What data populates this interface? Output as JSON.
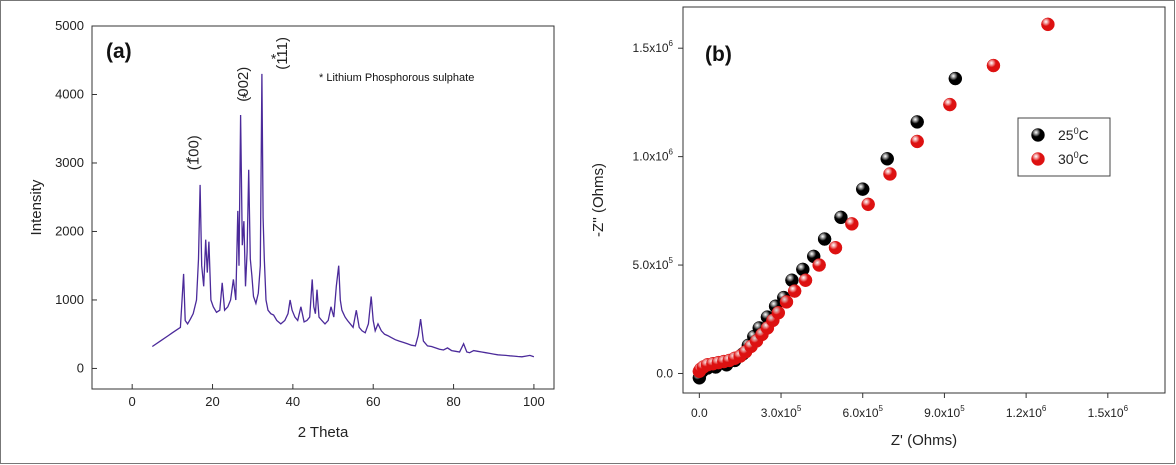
{
  "chart_data": [
    {
      "type": "line",
      "panel_label": "(a)",
      "xlabel": "2 Theta",
      "ylabel": "Intensity",
      "xlim": [
        -10,
        105
      ],
      "ylim": [
        -300,
        5000
      ],
      "x_ticks": [
        0,
        20,
        40,
        60,
        80,
        100
      ],
      "y_ticks": [
        0,
        1000,
        2000,
        3000,
        4000,
        5000
      ],
      "color": "#4b2a9a",
      "legend_note": "* Lithium Phosphorous sulphate",
      "annotations": [
        {
          "text": "(100)",
          "x": 16.5,
          "y": 3150,
          "star_x": 14,
          "star_y": 2950
        },
        {
          "text": "(002)",
          "x": 28.8,
          "y": 4150,
          "star_x": 28,
          "star_y": 3880
        },
        {
          "text": "(111)",
          "x": 38.5,
          "y": 4600,
          "star_x": 35.2,
          "star_y": 4450
        }
      ],
      "series": [
        {
          "x": [
            5,
            7,
            9,
            10,
            11,
            12,
            12.8,
            13.2,
            13.8,
            14.5,
            15.2,
            16,
            16.5,
            16.9,
            17.3,
            17.8,
            18.3,
            18.7,
            19.1,
            19.6,
            20.2,
            21,
            21.8,
            22.4,
            23,
            23.8,
            24.5,
            25.2,
            25.8,
            26.3,
            26.6,
            27,
            27.4,
            27.8,
            28.2,
            28.6,
            29,
            29.4,
            29.8,
            30.2,
            30.8,
            31.4,
            31.9,
            32.3,
            32.6,
            32.9,
            33.3,
            33.8,
            34.5,
            35.2,
            36,
            37,
            38,
            38.8,
            39.3,
            39.8,
            40.5,
            41.2,
            42,
            42.8,
            43.5,
            44.2,
            44.8,
            45.2,
            45.6,
            46,
            46.5,
            47.2,
            48,
            48.8,
            49.5,
            50.2,
            50.8,
            51.4,
            51.8,
            52.2,
            52.6,
            53,
            53.6,
            54.3,
            55,
            55.8,
            56.5,
            57.2,
            58,
            58.8,
            59.5,
            60,
            60.5,
            61.2,
            62,
            62.8,
            63.6,
            64.5,
            65.5,
            66.5,
            67.5,
            68.5,
            69.5,
            70.5,
            71.2,
            71.8,
            72.5,
            73.5,
            74.5,
            75.5,
            76.5,
            77.5,
            78.5,
            79.5,
            80.5,
            81.5,
            82.5,
            83.3,
            84,
            85,
            86,
            87,
            88,
            89,
            90,
            91,
            92,
            93,
            94,
            95,
            96,
            97,
            98,
            99,
            100
          ],
          "y": [
            320,
            400,
            480,
            520,
            560,
            600,
            1380,
            700,
            650,
            720,
            800,
            1000,
            1600,
            2680,
            1500,
            1200,
            1880,
            1400,
            1850,
            1000,
            900,
            820,
            850,
            1250,
            850,
            900,
            1000,
            1300,
            1000,
            2300,
            1500,
            3700,
            1800,
            2150,
            1200,
            1700,
            2900,
            1600,
            1350,
            1050,
            950,
            1100,
            1500,
            4300,
            2200,
            1600,
            1000,
            850,
            800,
            780,
            700,
            650,
            700,
            800,
            1000,
            850,
            750,
            700,
            900,
            680,
            700,
            750,
            1300,
            900,
            800,
            1150,
            750,
            700,
            650,
            700,
            900,
            750,
            1200,
            1500,
            1000,
            850,
            800,
            750,
            700,
            650,
            600,
            850,
            600,
            550,
            520,
            650,
            1050,
            700,
            550,
            650,
            550,
            500,
            480,
            450,
            420,
            400,
            380,
            360,
            340,
            330,
            480,
            720,
            400,
            330,
            320,
            300,
            280,
            270,
            300,
            260,
            250,
            240,
            360,
            240,
            230,
            260,
            250,
            240,
            230,
            220,
            210,
            200,
            195,
            190,
            185,
            180,
            175,
            170,
            180,
            190,
            170
          ]
        }
      ]
    },
    {
      "type": "scatter",
      "panel_label": "(b)",
      "xlabel": "Z' (Ohms)",
      "ylabel": "-Z'' (Ohms)",
      "xlim": [
        -60000,
        1710000
      ],
      "ylim": [
        -90000,
        1690000
      ],
      "x_ticks": [
        0,
        300000,
        600000,
        900000,
        1200000,
        1500000
      ],
      "x_tick_labels": [
        {
          "m": "0.0",
          "e": ""
        },
        {
          "m": "3.0x10",
          "e": "5"
        },
        {
          "m": "6.0x10",
          "e": "5"
        },
        {
          "m": "9.0x10",
          "e": "5"
        },
        {
          "m": "1.2x10",
          "e": "6"
        },
        {
          "m": "1.5x10",
          "e": "6"
        }
      ],
      "y_ticks": [
        0,
        500000,
        1000000,
        1500000
      ],
      "y_tick_labels": [
        {
          "m": "0.0",
          "e": ""
        },
        {
          "m": "5.0x10",
          "e": "5"
        },
        {
          "m": "1.0x10",
          "e": "6"
        },
        {
          "m": "1.5x10",
          "e": "6"
        }
      ],
      "legend_position": "top-right",
      "series": [
        {
          "name": "25",
          "superscript": "0",
          "unit": "C",
          "color": "#000000",
          "x": [
            0,
            10000,
            30000,
            60000,
            100000,
            130000,
            160000,
            180000,
            200000,
            220000,
            250000,
            280000,
            310000,
            340000,
            380000,
            420000,
            460000,
            520000,
            600000,
            690000,
            800000,
            940000
          ],
          "y": [
            -20000,
            10000,
            25000,
            30000,
            40000,
            60000,
            90000,
            130000,
            170000,
            210000,
            260000,
            310000,
            350000,
            430000,
            480000,
            540000,
            620000,
            720000,
            850000,
            990000,
            1160000,
            1360000
          ]
        },
        {
          "name": "30",
          "superscript": "0",
          "unit": "C",
          "color": "#dd1111",
          "x": [
            0,
            5000,
            15000,
            30000,
            50000,
            70000,
            90000,
            110000,
            130000,
            150000,
            170000,
            190000,
            210000,
            230000,
            250000,
            270000,
            290000,
            320000,
            350000,
            390000,
            440000,
            500000,
            560000,
            620000,
            700000,
            800000,
            920000,
            1080000,
            1280000
          ],
          "y": [
            10000,
            20000,
            30000,
            40000,
            45000,
            50000,
            55000,
            60000,
            70000,
            80000,
            100000,
            125000,
            150000,
            180000,
            210000,
            245000,
            280000,
            330000,
            380000,
            430000,
            500000,
            580000,
            690000,
            780000,
            920000,
            1070000,
            1240000,
            1420000,
            1610000
          ]
        }
      ]
    }
  ]
}
